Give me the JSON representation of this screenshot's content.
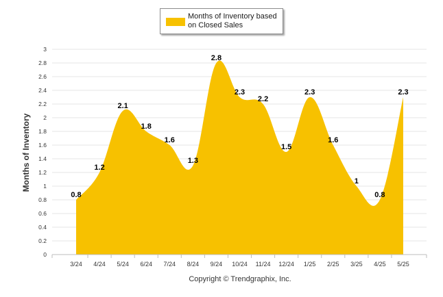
{
  "chart_data": {
    "type": "area",
    "categories": [
      "3/24",
      "4/24",
      "5/24",
      "6/24",
      "7/24",
      "8/24",
      "9/24",
      "10/24",
      "11/24",
      "12/24",
      "1/25",
      "2/25",
      "3/25",
      "4/25",
      "5/25"
    ],
    "series": [
      {
        "name": "Months of Inventory based on Closed Sales",
        "values": [
          0.8,
          1.2,
          2.1,
          1.8,
          1.6,
          1.3,
          2.8,
          2.3,
          2.2,
          1.5,
          2.3,
          1.6,
          1,
          0.8,
          2.3
        ],
        "labels": [
          "0.8",
          "1.2",
          "2.1",
          "1.8",
          "1.6",
          "1.3",
          "2.8",
          "2.3",
          "2.2",
          "1.5",
          "2.3",
          "1.6",
          "1",
          "0.8",
          "2.3"
        ],
        "color": "#f7c100"
      }
    ],
    "ylabel": "Months of Inventory",
    "ylim": [
      0,
      3
    ],
    "yticks": [
      "0",
      "0.2",
      "0.4",
      "0.6",
      "0.8",
      "1",
      "1.2",
      "1.4",
      "1.6",
      "1.8",
      "2",
      "2.2",
      "2.4",
      "2.6",
      "2.8",
      "3"
    ],
    "grid": true,
    "legend_placement": "top"
  },
  "legend": {
    "label": "Months of Inventory based on Closed Sales",
    "color": "#f7c100"
  },
  "footer": {
    "copyright": "Copyright © Trendgraphix, Inc."
  }
}
